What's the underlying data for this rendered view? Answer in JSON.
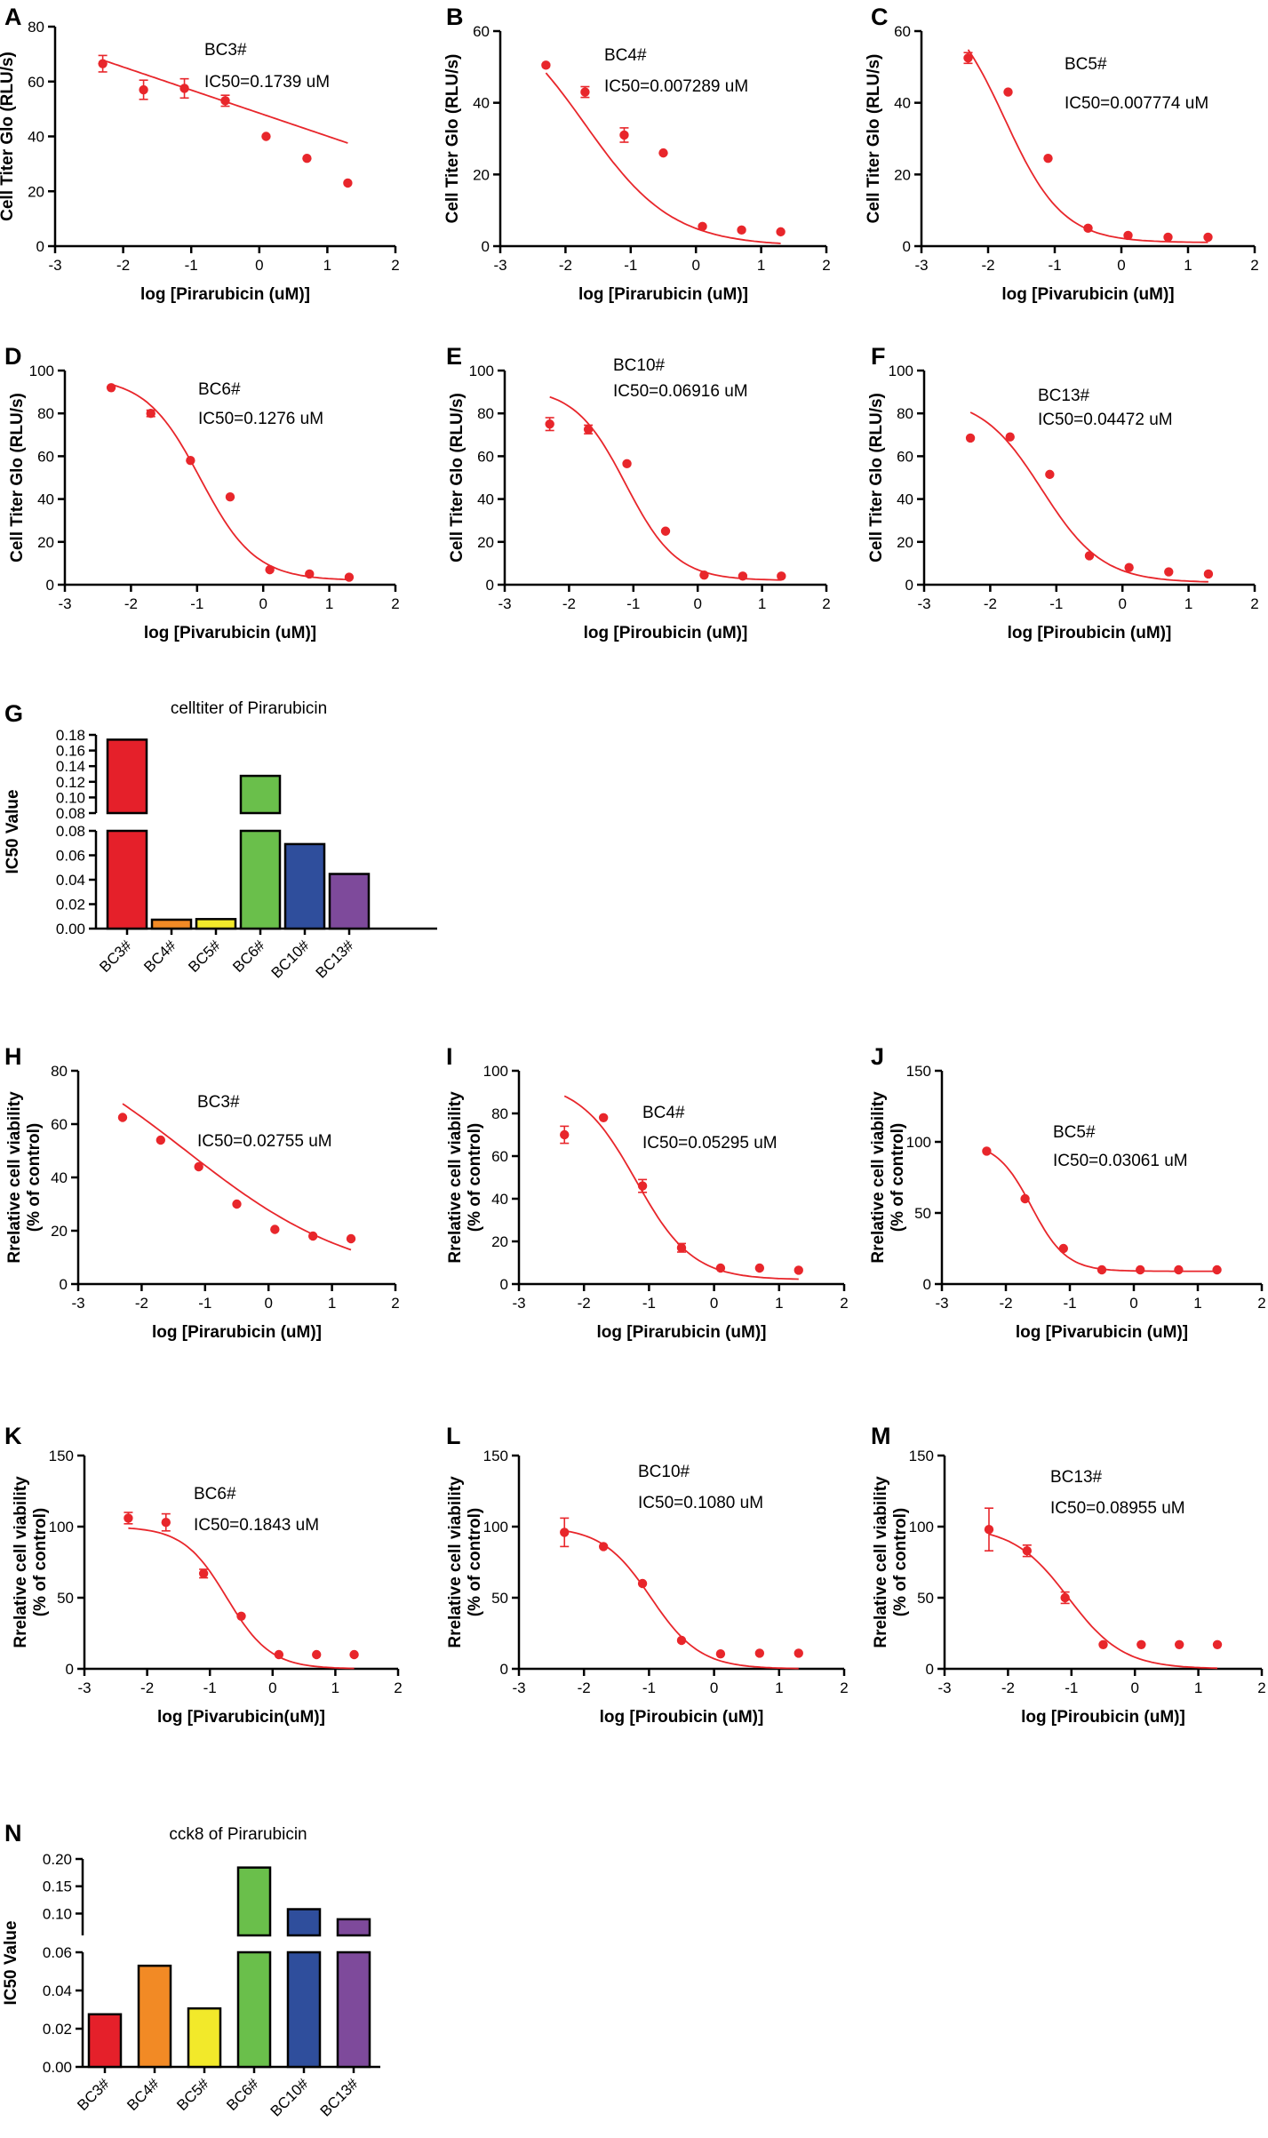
{
  "colors": {
    "curve": "#e8262b",
    "bars": [
      "#e5202a",
      "#f28a25",
      "#f2e92a",
      "#6abf4b",
      "#2f4e9c",
      "#7e4a9b"
    ]
  },
  "chart_data": [
    {
      "id": "A",
      "type": "scatter",
      "letter": "A",
      "title": "",
      "xlabel": "log [Pirarubicin (uM)]",
      "ylabel": "Cell Titer Glo (RLU/s)",
      "xlim": [
        -3,
        2
      ],
      "ylim": [
        0,
        80
      ],
      "xticks": [
        -3,
        -2,
        -1,
        0,
        1,
        2
      ],
      "yticks": [
        0,
        20,
        40,
        60,
        80
      ],
      "x": [
        -2.3,
        -1.7,
        -1.1,
        -0.5,
        0.1,
        0.7,
        1.3
      ],
      "y": [
        66.5,
        57,
        57.5,
        53,
        40,
        32,
        23
      ],
      "err": [
        3,
        3.5,
        3.5,
        2,
        0,
        0,
        0
      ],
      "fit": {
        "kind": "linear",
        "slope": -8.4,
        "intercept": 48.5
      },
      "annotations": [
        "BC3#",
        "IC50=0.1739 uM"
      ]
    },
    {
      "id": "B",
      "type": "scatter",
      "letter": "B",
      "title": "",
      "xlabel": "log [Pirarubicin (uM)]",
      "ylabel": "Cell Titer Glo (RLU/s)",
      "xlim": [
        -3,
        2
      ],
      "ylim": [
        0,
        60
      ],
      "xticks": [
        -3,
        -2,
        -1,
        0,
        1,
        2
      ],
      "yticks": [
        0,
        20,
        40,
        60
      ],
      "x": [
        -2.3,
        -1.7,
        -1.1,
        -0.5,
        0.1,
        0.7,
        1.3
      ],
      "y": [
        50.5,
        43,
        31,
        26,
        5.5,
        4.5,
        4
      ],
      "err": [
        0,
        1.5,
        2,
        0,
        0,
        0,
        0
      ],
      "fit": {
        "kind": "hill",
        "top": 68,
        "bottom": 0,
        "logic50": -1.7,
        "hill": -0.65
      },
      "annotations": [
        "BC4#",
        "IC50=0.007289 uM"
      ]
    },
    {
      "id": "C",
      "type": "scatter",
      "letter": "C",
      "title": "",
      "xlabel": "log [Pivarubicin (uM)]",
      "ylabel": "Cell Titer Glo (RLU/s)",
      "xlim": [
        -3,
        2
      ],
      "ylim": [
        0,
        60
      ],
      "xticks": [
        -3,
        -2,
        -1,
        0,
        1,
        2
      ],
      "yticks": [
        0,
        20,
        40,
        60
      ],
      "x": [
        -2.3,
        -1.7,
        -1.1,
        -0.5,
        0.1,
        0.7,
        1.3
      ],
      "y": [
        52.5,
        43,
        24.5,
        5,
        3,
        2.5,
        2.5
      ],
      "err": [
        1.5,
        0,
        0,
        0,
        0,
        0,
        0
      ],
      "fit": {
        "kind": "hill",
        "top": 70,
        "bottom": 1,
        "logic50": -1.75,
        "hill": -1.0
      },
      "annotations": [
        "BC5#",
        "IC50=0.007774 uM"
      ]
    },
    {
      "id": "D",
      "type": "scatter",
      "letter": "D",
      "title": "",
      "xlabel": "log [Pivarubicin (uM)]",
      "ylabel": "Cell Titer Glo (RLU/s)",
      "xlim": [
        -3,
        2
      ],
      "ylim": [
        0,
        100
      ],
      "xticks": [
        -3,
        -2,
        -1,
        0,
        1,
        2
      ],
      "yticks": [
        0,
        20,
        40,
        60,
        80,
        100
      ],
      "x": [
        -2.3,
        -1.7,
        -1.1,
        -0.5,
        0.1,
        0.7,
        1.3
      ],
      "y": [
        92,
        80,
        58,
        41,
        7,
        5,
        3.5
      ],
      "err": [
        0,
        1.5,
        0,
        0,
        0,
        0,
        0
      ],
      "fit": {
        "kind": "hill",
        "top": 97,
        "bottom": 2,
        "logic50": -0.95,
        "hill": -1.05
      },
      "annotations": [
        "BC6#",
        "IC50=0.1276 uM"
      ]
    },
    {
      "id": "E",
      "type": "scatter",
      "letter": "E",
      "title": "",
      "xlabel": "log [Piroubicin (uM)]",
      "ylabel": "Cell Titer Glo (RLU/s)",
      "xlim": [
        -3,
        2
      ],
      "ylim": [
        0,
        100
      ],
      "xticks": [
        -3,
        -2,
        -1,
        0,
        1,
        2
      ],
      "yticks": [
        0,
        20,
        40,
        60,
        80,
        100
      ],
      "x": [
        -2.3,
        -1.7,
        -1.1,
        -0.5,
        0.1,
        0.7,
        1.3
      ],
      "y": [
        75,
        72.5,
        56.5,
        25,
        4.5,
        4,
        4
      ],
      "err": [
        3,
        2,
        0,
        0,
        0,
        0,
        0
      ],
      "fit": {
        "kind": "hill",
        "top": 92,
        "bottom": 2,
        "logic50": -1.12,
        "hill": -1.1
      },
      "annotations": [
        "BC10#",
        "IC50=0.06916 uM"
      ]
    },
    {
      "id": "F",
      "type": "scatter",
      "letter": "F",
      "title": "",
      "xlabel": "log [Piroubicin (uM)]",
      "ylabel": "Cell Titer Glo (RLU/s)",
      "xlim": [
        -3,
        2
      ],
      "ylim": [
        0,
        100
      ],
      "xticks": [
        -3,
        -2,
        -1,
        0,
        1,
        2
      ],
      "yticks": [
        0,
        20,
        40,
        60,
        80,
        100
      ],
      "x": [
        -2.3,
        -1.7,
        -1.1,
        -0.5,
        0.1,
        0.7,
        1.3
      ],
      "y": [
        68.5,
        69,
        51.5,
        13.5,
        8,
        6,
        5
      ],
      "err": [
        0,
        0,
        0,
        0,
        0,
        0,
        0
      ],
      "fit": {
        "kind": "hill",
        "top": 88,
        "bottom": 1,
        "logic50": -1.22,
        "hill": -0.95
      },
      "annotations": [
        "BC13#",
        "IC50=0.04472 uM"
      ]
    },
    {
      "id": "G",
      "type": "bar",
      "letter": "G",
      "title": "celltiter of Pirarubicin",
      "xlabel": "",
      "ylabel": "IC50 Value",
      "categories": [
        "BC3#",
        "BC4#",
        "BC5#",
        "BC6#",
        "BC10#",
        "BC13#"
      ],
      "values": [
        0.1739,
        0.007289,
        0.007774,
        0.1276,
        0.06916,
        0.04472
      ],
      "broken_axis": {
        "lower": [
          0,
          0.08
        ],
        "upper": [
          0.08,
          0.18
        ]
      },
      "lower_ticks": [
        "0.00",
        "0.02",
        "0.04",
        "0.06",
        "0.08"
      ],
      "upper_ticks": [
        "0.08",
        "0.10",
        "0.12",
        "0.14",
        "0.16",
        "0.18"
      ]
    },
    {
      "id": "H",
      "type": "scatter",
      "letter": "H",
      "title": "",
      "xlabel": "log [Pirarubicin (uM)]",
      "ylabel": "Rrelative cell viability\n(% of control)",
      "xlim": [
        -3,
        2
      ],
      "ylim": [
        0,
        80
      ],
      "xticks": [
        -3,
        -2,
        -1,
        0,
        1,
        2
      ],
      "yticks": [
        0,
        20,
        40,
        60,
        80
      ],
      "x": [
        -2.3,
        -1.7,
        -1.1,
        -0.5,
        0.1,
        0.7,
        1.3
      ],
      "y": [
        62.5,
        54,
        44,
        30,
        20.5,
        18,
        17
      ],
      "err": [
        0,
        0,
        0,
        0,
        0,
        0,
        0
      ],
      "fit": {
        "kind": "hill",
        "top": 100,
        "bottom": 0,
        "logic50": -1.3,
        "hill": -0.32
      },
      "annotations": [
        "BC3#",
        "IC50=0.02755 uM"
      ]
    },
    {
      "id": "I",
      "type": "scatter",
      "letter": "I",
      "title": "",
      "xlabel": "log [Pirarubicin (uM)]",
      "ylabel": "Rrelative cell viability\n(% of control)",
      "xlim": [
        -3,
        2
      ],
      "ylim": [
        0,
        100
      ],
      "xticks": [
        -3,
        -2,
        -1,
        0,
        1,
        2
      ],
      "yticks": [
        0,
        20,
        40,
        60,
        80,
        100
      ],
      "x": [
        -2.3,
        -1.7,
        -1.1,
        -0.5,
        0.1,
        0.7,
        1.3
      ],
      "y": [
        70,
        78,
        46,
        17,
        7.5,
        7.5,
        6.5
      ],
      "err": [
        4,
        0,
        3,
        2,
        0,
        0,
        0
      ],
      "fit": {
        "kind": "hill",
        "top": 95,
        "bottom": 2,
        "logic50": -1.2,
        "hill": -1.0
      },
      "annotations": [
        "BC4#",
        "IC50=0.05295 uM"
      ]
    },
    {
      "id": "J",
      "type": "scatter",
      "letter": "J",
      "title": "",
      "xlabel": "log [Pivarubicin (uM)]",
      "ylabel": "Rrelative cell viability\n(% of control)",
      "xlim": [
        -3,
        2
      ],
      "ylim": [
        0,
        150
      ],
      "xticks": [
        -3,
        -2,
        -1,
        0,
        1,
        2
      ],
      "yticks": [
        0,
        50,
        100,
        150
      ],
      "x": [
        -2.3,
        -1.7,
        -1.1,
        -0.5,
        0.1,
        0.7,
        1.3
      ],
      "y": [
        93.5,
        60,
        25,
        10,
        10,
        10,
        10
      ],
      "err": [
        0,
        0,
        0,
        0,
        0,
        0,
        0
      ],
      "fit": {
        "kind": "hill",
        "top": 100,
        "bottom": 9,
        "logic50": -1.6,
        "hill": -1.6
      },
      "annotations": [
        "BC5#",
        "IC50=0.03061 uM"
      ]
    },
    {
      "id": "K",
      "type": "scatter",
      "letter": "K",
      "title": "",
      "xlabel": "log [Pivarubicin(uM)]",
      "ylabel": "Rrelative cell viability\n(% of control)",
      "xlim": [
        -3,
        2
      ],
      "ylim": [
        0,
        150
      ],
      "xticks": [
        -3,
        -2,
        -1,
        0,
        1,
        2
      ],
      "yticks": [
        0,
        50,
        100,
        150
      ],
      "x": [
        -2.3,
        -1.7,
        -1.1,
        -0.5,
        0.1,
        0.7,
        1.3
      ],
      "y": [
        106,
        103,
        67,
        37,
        10,
        10,
        10
      ],
      "err": [
        4,
        6,
        3,
        0,
        0,
        0,
        0
      ],
      "fit": {
        "kind": "hill",
        "top": 100,
        "bottom": 0,
        "logic50": -0.73,
        "hill": -1.25
      },
      "annotations": [
        "BC6#",
        "IC50=0.1843 uM"
      ]
    },
    {
      "id": "L",
      "type": "scatter",
      "letter": "L",
      "title": "",
      "xlabel": "log [Piroubicin (uM)]",
      "ylabel": "Rrelative cell viability\n(% of control)",
      "xlim": [
        -3,
        2
      ],
      "ylim": [
        0,
        150
      ],
      "xticks": [
        -3,
        -2,
        -1,
        0,
        1,
        2
      ],
      "yticks": [
        0,
        50,
        100,
        150
      ],
      "x": [
        -2.3,
        -1.7,
        -1.1,
        -0.5,
        0.1,
        0.7,
        1.3
      ],
      "y": [
        96,
        86,
        60,
        20,
        10.5,
        11,
        11
      ],
      "err": [
        10,
        0,
        0,
        0,
        0,
        0,
        0
      ],
      "fit": {
        "kind": "hill",
        "top": 100,
        "bottom": 0,
        "logic50": -0.97,
        "hill": -1.15
      },
      "annotations": [
        "BC10#",
        "IC50=0.1080 uM"
      ]
    },
    {
      "id": "M",
      "type": "scatter",
      "letter": "M",
      "title": "",
      "xlabel": "log [Piroubicin (uM)]",
      "ylabel": "Rrelative cell viability\n(% of control)",
      "xlim": [
        -3,
        2
      ],
      "ylim": [
        0,
        150
      ],
      "xticks": [
        -3,
        -2,
        -1,
        0,
        1,
        2
      ],
      "yticks": [
        0,
        50,
        100,
        150
      ],
      "x": [
        -2.3,
        -1.7,
        -1.1,
        -0.5,
        0.1,
        0.7,
        1.3
      ],
      "y": [
        98,
        83,
        50,
        17,
        17,
        17,
        17
      ],
      "err": [
        15,
        4,
        4,
        0,
        0,
        0,
        0
      ],
      "fit": {
        "kind": "hill",
        "top": 100,
        "bottom": 0,
        "logic50": -1.05,
        "hill": -1.0
      },
      "annotations": [
        "BC13#",
        "IC50=0.08955 uM"
      ]
    },
    {
      "id": "N",
      "type": "bar",
      "letter": "N",
      "title": "cck8 of Pirarubicin",
      "xlabel": "",
      "ylabel": "IC50 Value",
      "categories": [
        "BC3#",
        "BC4#",
        "BC5#",
        "BC6#",
        "BC10#",
        "BC13#"
      ],
      "values": [
        0.02755,
        0.05295,
        0.03061,
        0.1843,
        0.108,
        0.08955
      ],
      "broken_axis": {
        "lower": [
          0,
          0.06
        ],
        "upper": [
          0.06,
          0.2
        ]
      },
      "lower_ticks": [
        "0.00",
        "0.02",
        "0.04",
        "0.06"
      ],
      "upper_ticks": [
        "0.10",
        "0.15",
        "0.20"
      ]
    }
  ]
}
